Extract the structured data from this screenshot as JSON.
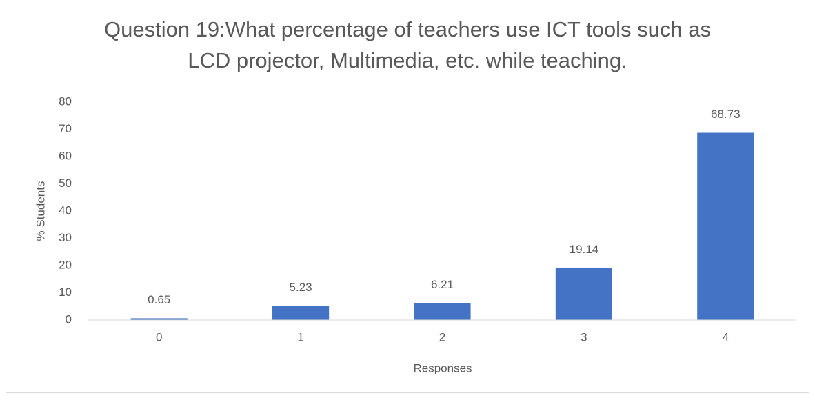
{
  "chart_data": {
    "type": "bar",
    "title": "Question 19:What percentage of teachers use ICT tools such as LCD projector, Multimedia, etc. while teaching.",
    "x_label": "Responses",
    "y_label": "% Students",
    "categories": [
      "0",
      "1",
      "2",
      "3",
      "4"
    ],
    "values": [
      0.65,
      5.23,
      6.21,
      19.14,
      68.73
    ],
    "color": "#4472c4",
    "ylim": [
      0,
      80
    ],
    "yticks": [
      0,
      10,
      20,
      30,
      40,
      50,
      60,
      70,
      80
    ],
    "grid": false,
    "data_labels": true
  }
}
